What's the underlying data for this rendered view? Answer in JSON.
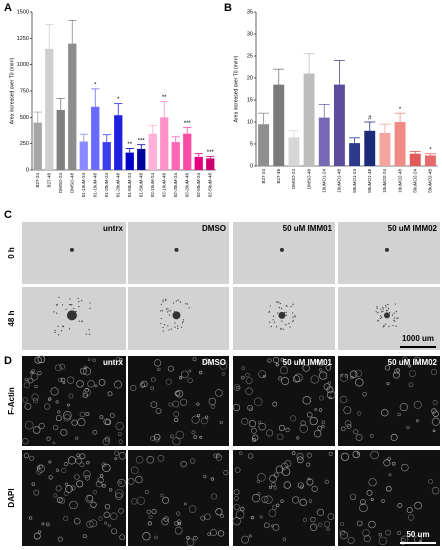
{
  "chart_data": [
    {
      "type": "bar",
      "label": "A",
      "ylabel": "Area increased over T0 (mm²)",
      "categories": [
        "B27-24",
        "B27-48",
        "DMSO-24",
        "DMSO-48",
        "01-10uM-24",
        "01-10uM-48",
        "01-20uM-24",
        "01-20uM-48",
        "01-50uM-24",
        "01-50uM-48",
        "02-10uM-24",
        "02-10uM-48",
        "02-20uM-24",
        "02-20uM-48",
        "02-50uM-24",
        "02-50uM-48"
      ],
      "values": [
        450,
        1150,
        570,
        1200,
        270,
        600,
        265,
        520,
        165,
        200,
        345,
        500,
        265,
        345,
        125,
        110
      ],
      "errors": [
        100,
        230,
        110,
        220,
        70,
        170,
        70,
        110,
        40,
        40,
        80,
        150,
        50,
        60,
        30,
        20
      ],
      "colors": [
        "#a6a6a6",
        "#cfcfcf",
        "#7f7f7f",
        "#8c8c8c",
        "#8a8aff",
        "#6a6aff",
        "#3c3cf0",
        "#2020e0",
        "#0000c8",
        "#00009a",
        "#ffb0d8",
        "#ff90c8",
        "#ff66b3",
        "#ff4da6",
        "#e6007e",
        "#cc0070"
      ],
      "annotations": [
        null,
        null,
        null,
        null,
        null,
        "*",
        null,
        "*",
        "**",
        "***",
        null,
        "**",
        null,
        "***",
        null,
        "***"
      ],
      "ylim": [
        0,
        1500
      ],
      "yticks": [
        0,
        250,
        500,
        750,
        1000,
        1250,
        1500
      ]
    },
    {
      "type": "bar",
      "label": "B",
      "ylabel": "Area increased over T0 (mm²)",
      "categories": [
        "B27-24",
        "B27-48",
        "DMSO-24",
        "DMSO-48",
        "10uMO1-24",
        "10uMO1-48",
        "50uMO1-24",
        "50uMO1-48",
        "10uMO2-24",
        "10uMO2-48",
        "50uMO2-24",
        "50uMO2-48"
      ],
      "values": [
        9.5,
        18.5,
        6.5,
        21,
        11,
        18.5,
        5.2,
        8,
        7.5,
        10,
        2.8,
        2.4
      ],
      "errors": [
        2.5,
        3.5,
        1.5,
        4.5,
        3,
        5.5,
        1.2,
        2,
        2,
        2,
        0.5,
        0.4
      ],
      "colors": [
        "#8f8f8f",
        "#7a7a7a",
        "#d6d6d6",
        "#bdbdbd",
        "#7668b4",
        "#5b4c9e",
        "#2d3a8c",
        "#1c2a7a",
        "#f4a49c",
        "#f08a84",
        "#e05a5a",
        "#e66a6a"
      ],
      "annotations": [
        null,
        null,
        null,
        null,
        null,
        null,
        null,
        "#",
        null,
        "*",
        null,
        "*"
      ],
      "ylim": [
        0,
        35
      ],
      "yticks": [
        0,
        5,
        10,
        15,
        20,
        25,
        30,
        35
      ]
    }
  ],
  "panels": [
    {
      "label": "C",
      "rows": [
        "0 h",
        "48 h"
      ],
      "columns": [
        "untrx",
        "DMSO",
        "50 uM IMM01",
        "50 uM IMM02"
      ],
      "scale_bar": "1000 um"
    },
    {
      "label": "D",
      "rows": [
        "F-Actin",
        "DAPI"
      ],
      "columns": [
        "untrx",
        "DMSO",
        "50 uM IMM01",
        "50 uM IMM02"
      ],
      "scale_bar": "50 um"
    }
  ]
}
